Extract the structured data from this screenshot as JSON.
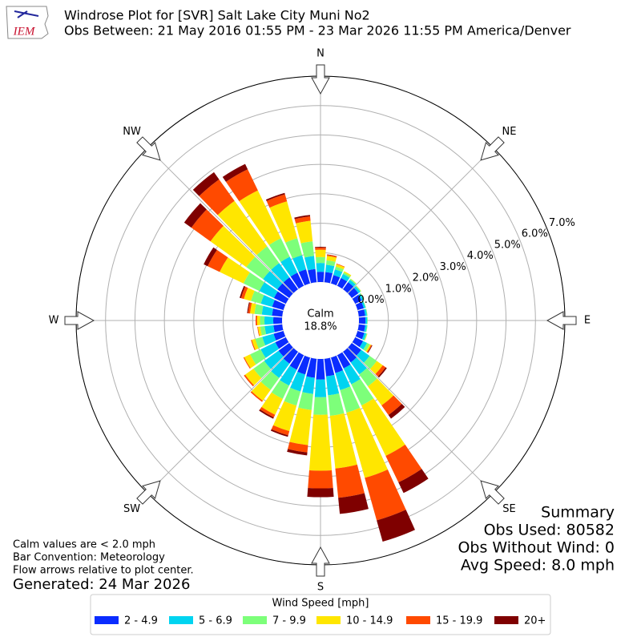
{
  "logo": "IEM",
  "chart_data": {
    "type": "windrose",
    "title": "Windrose Plot for [SVR] Salt Lake City Muni No2",
    "subtitle": "Obs Between: 21 May 2016 01:55 PM - 23 Mar 2026 11:55 PM America/Denver",
    "calm_label": "Calm",
    "calm_percent": "18.8%",
    "x": [
      0,
      10,
      20,
      30,
      40,
      50,
      60,
      70,
      80,
      90,
      100,
      110,
      120,
      130,
      140,
      150,
      160,
      170,
      180,
      190,
      200,
      210,
      220,
      230,
      240,
      250,
      260,
      270,
      280,
      290,
      300,
      310,
      320,
      330,
      340,
      350
    ],
    "xticks": [
      {
        "value": 0,
        "label": "N"
      },
      {
        "value": 45,
        "label": "NE"
      },
      {
        "value": 90,
        "label": "E"
      },
      {
        "value": 135,
        "label": "SE"
      },
      {
        "value": 180,
        "label": "S"
      },
      {
        "value": 225,
        "label": "SW"
      },
      {
        "value": 270,
        "label": "W"
      },
      {
        "value": 315,
        "label": "NW"
      }
    ],
    "ylim": [
      0,
      7
    ],
    "yticks": [
      {
        "value": 0,
        "label": "0.0%"
      },
      {
        "value": 1,
        "label": "1.0%"
      },
      {
        "value": 2,
        "label": "2.0%"
      },
      {
        "value": 3,
        "label": "3.0%"
      },
      {
        "value": 4,
        "label": "4.0%"
      },
      {
        "value": 5,
        "label": "5.0%"
      },
      {
        "value": 6,
        "label": "6.0%"
      },
      {
        "value": 7,
        "label": "7.0%"
      }
    ],
    "grid": true,
    "legend_title": "Wind Speed [mph]",
    "series": [
      {
        "name": "2 - 4.9",
        "color": "#0a2cff",
        "values": [
          0.35,
          0.35,
          0.3,
          0.3,
          0.3,
          0.28,
          0.25,
          0.22,
          0.22,
          0.22,
          0.22,
          0.24,
          0.3,
          0.4,
          0.45,
          0.5,
          0.55,
          0.6,
          0.7,
          0.65,
          0.6,
          0.55,
          0.5,
          0.45,
          0.4,
          0.35,
          0.3,
          0.3,
          0.35,
          0.4,
          0.45,
          0.5,
          0.5,
          0.5,
          0.5,
          0.45
        ]
      },
      {
        "name": "5 - 6.9",
        "color": "#00d4f0",
        "values": [
          0.3,
          0.25,
          0.2,
          0.15,
          0.1,
          0.08,
          0.07,
          0.06,
          0.06,
          0.06,
          0.06,
          0.07,
          0.15,
          0.35,
          0.5,
          0.6,
          0.6,
          0.65,
          0.6,
          0.55,
          0.6,
          0.6,
          0.6,
          0.6,
          0.55,
          0.4,
          0.3,
          0.3,
          0.35,
          0.4,
          0.55,
          0.6,
          0.6,
          0.6,
          0.5,
          0.45
        ]
      },
      {
        "name": "7 - 9.9",
        "color": "#7dff7a",
        "values": [
          0.2,
          0.15,
          0.1,
          0.06,
          0.04,
          0.03,
          0.02,
          0.02,
          0.02,
          0.02,
          0.02,
          0.03,
          0.1,
          0.3,
          0.5,
          0.8,
          0.8,
          0.7,
          0.6,
          0.55,
          0.5,
          0.5,
          0.5,
          0.45,
          0.4,
          0.25,
          0.15,
          0.15,
          0.25,
          0.35,
          0.6,
          0.7,
          0.7,
          0.7,
          0.6,
          0.5
        ]
      },
      {
        "name": "10 - 14.9",
        "color": "#ffe600",
        "values": [
          0.25,
          0.15,
          0.08,
          0.04,
          0.01,
          0.01,
          0.01,
          0,
          0,
          0,
          0,
          0.01,
          0.05,
          0.25,
          0.8,
          1.9,
          2.3,
          1.8,
          1.9,
          1.2,
          0.9,
          0.6,
          0.45,
          0.35,
          0.22,
          0.12,
          0.08,
          0.1,
          0.15,
          0.25,
          0.9,
          1.5,
          1.9,
          1.8,
          1.3,
          0.7
        ]
      },
      {
        "name": "15 - 19.9",
        "color": "#ff4a00",
        "values": [
          0.07,
          0.04,
          0.02,
          0,
          0,
          0,
          0,
          0,
          0,
          0,
          0,
          0,
          0.03,
          0.12,
          0.4,
          1.0,
          1.5,
          1.0,
          0.6,
          0.25,
          0.15,
          0.1,
          0.05,
          0.05,
          0.03,
          0.03,
          0.02,
          0.05,
          0.07,
          0.1,
          0.45,
          0.8,
          0.9,
          0.8,
          0.25,
          0.15
        ]
      },
      {
        "name": "20+",
        "color": "#7f0000",
        "values": [
          0.03,
          0.01,
          0,
          0,
          0,
          0,
          0,
          0,
          0,
          0,
          0,
          0,
          0.02,
          0.05,
          0.15,
          0.4,
          0.75,
          0.55,
          0.3,
          0.1,
          0.05,
          0.05,
          0,
          0,
          0,
          0,
          0,
          0,
          0.03,
          0.05,
          0.15,
          0.3,
          0.3,
          0.2,
          0.05,
          0.05
        ]
      }
    ],
    "notes": [
      "Calm values are < 2.0 mph",
      "Bar Convention: Meteorology",
      "Flow arrows relative to plot center."
    ],
    "generated": "Generated: 24 Mar 2026",
    "summary": [
      "Summary",
      "Obs Used: 80582",
      "Obs Without Wind: 0",
      "Avg Speed: 8.0 mph"
    ]
  }
}
